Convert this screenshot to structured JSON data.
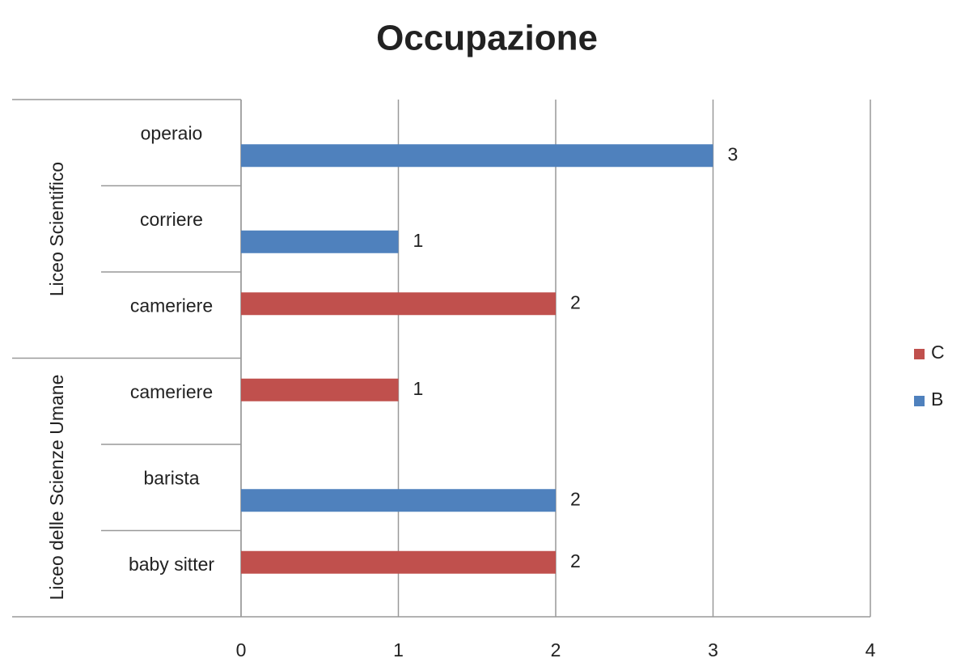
{
  "chart_data": {
    "type": "bar",
    "orientation": "horizontal",
    "title": "Occupazione",
    "groups": [
      {
        "name": "Liceo Scientifico",
        "categories": [
          "operaio",
          "corriere",
          "cameriere"
        ]
      },
      {
        "name": "Liceo delle Scienze Umane",
        "categories": [
          "cameriere",
          "barista",
          "baby sitter"
        ]
      }
    ],
    "series": [
      {
        "name": "C",
        "color": "#c0504d",
        "values": [
          null,
          null,
          2,
          1,
          null,
          2
        ]
      },
      {
        "name": "B",
        "color": "#4f81bd",
        "values": [
          3,
          1,
          null,
          null,
          2,
          null
        ]
      }
    ],
    "xlim": [
      0,
      4
    ],
    "xticks": [
      0,
      1,
      2,
      3,
      4
    ],
    "grid": true,
    "legend": "right"
  }
}
